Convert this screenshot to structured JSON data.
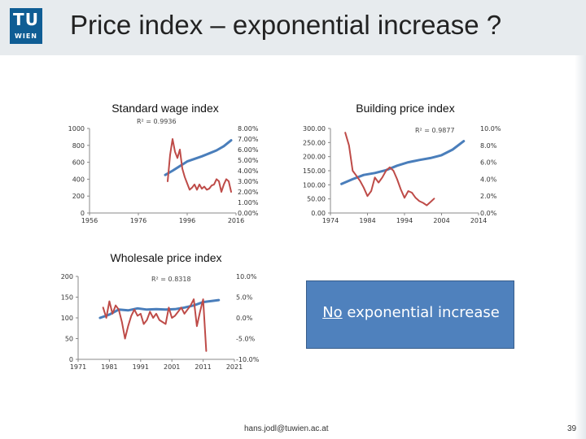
{
  "slide": {
    "title": "Price index – exponential increase ?",
    "logo_tu": "TU",
    "logo_wien": "WIEN",
    "callout_underlined": "No",
    "callout_rest": " exponential increase",
    "email": "hans.jodl@tuwien.ac.at",
    "page_number": "39",
    "colors": {
      "blue_series": "#4a7ebb",
      "red_series": "#be4b48",
      "callout_bg": "#4f81bd"
    }
  },
  "chart_data": [
    {
      "id": "wage",
      "type": "line",
      "title": "Standard wage index",
      "r2_label": "R² = 0.9936",
      "x_ticks": [
        "1956",
        "1976",
        "1996",
        "2016"
      ],
      "xlim": [
        1956,
        2016
      ],
      "left_axis": {
        "ticks": [
          "0",
          "200",
          "400",
          "600",
          "800",
          "1000"
        ],
        "ylim": [
          0,
          1000
        ]
      },
      "right_axis": {
        "ticks": [
          "0.00%",
          "1.00%",
          "2.00%",
          "3.00%",
          "4.00%",
          "5.00%",
          "6.00%",
          "7.00%",
          "8.00%"
        ],
        "ylim": [
          0,
          8
        ]
      },
      "series": [
        {
          "axis": "left",
          "color": "#4a7ebb",
          "x": [
            1987,
            1990,
            1993,
            1996,
            1999,
            2002,
            2005,
            2008,
            2011,
            2014
          ],
          "y": [
            450,
            500,
            555,
            610,
            640,
            670,
            705,
            740,
            790,
            860
          ]
        },
        {
          "axis": "right",
          "color": "#be4b48",
          "x": [
            1988,
            1989,
            1990,
            1991,
            1992,
            1993,
            1994,
            1995,
            1996,
            1997,
            1998,
            1999,
            2000,
            2001,
            2002,
            2003,
            2004,
            2005,
            2006,
            2007,
            2008,
            2009,
            2010,
            2011,
            2012,
            2013,
            2014
          ],
          "y": [
            3.0,
            5.5,
            7.0,
            5.8,
            5.2,
            6.0,
            4.2,
            3.4,
            2.8,
            2.2,
            2.4,
            2.7,
            2.2,
            2.7,
            2.3,
            2.5,
            2.2,
            2.3,
            2.6,
            2.7,
            3.2,
            3.0,
            2.0,
            2.7,
            3.2,
            3.0,
            2.0
          ]
        }
      ]
    },
    {
      "id": "building",
      "type": "line",
      "title": "Building price index",
      "r2_label": "R² = 0.9877",
      "x_ticks": [
        "1974",
        "1984",
        "1994",
        "2004",
        "2014"
      ],
      "xlim": [
        1974,
        2014
      ],
      "left_axis": {
        "ticks": [
          "0.00",
          "50.00",
          "100.00",
          "150.00",
          "200.00",
          "250.00",
          "300.00"
        ],
        "ylim": [
          0,
          300
        ]
      },
      "right_axis": {
        "ticks": [
          "0.0%",
          "2.0%",
          "4.0%",
          "6.0%",
          "8.0%",
          "10.0%"
        ],
        "ylim": [
          0,
          10
        ]
      },
      "series": [
        {
          "axis": "left",
          "color": "#4a7ebb",
          "x": [
            1977,
            1980,
            1983,
            1986,
            1989,
            1992,
            1995,
            1998,
            2001,
            2004,
            2007,
            2010
          ],
          "y": [
            103,
            120,
            135,
            142,
            152,
            168,
            180,
            188,
            195,
            205,
            225,
            255
          ]
        },
        {
          "axis": "right",
          "color": "#be4b48",
          "x": [
            1978,
            1979,
            1980,
            1981,
            1982,
            1983,
            1984,
            1985,
            1986,
            1987,
            1988,
            1989,
            1990,
            1991,
            1992,
            1993,
            1994,
            1995,
            1996,
            1997,
            1998,
            1999,
            2000,
            2001,
            2002
          ],
          "y": [
            9.5,
            8.0,
            5.0,
            4.4,
            3.8,
            3.0,
            2.0,
            2.6,
            4.2,
            3.6,
            4.2,
            5.0,
            5.4,
            5.0,
            4.0,
            2.8,
            1.8,
            2.6,
            2.4,
            1.8,
            1.4,
            1.2,
            0.9,
            1.3,
            1.7
          ]
        }
      ]
    },
    {
      "id": "wholesale",
      "type": "line",
      "title": "Wholesale price index",
      "r2_label": "R² = 0.8318",
      "x_ticks": [
        "1971",
        "1981",
        "1991",
        "2001",
        "2011",
        "2021"
      ],
      "xlim": [
        1971,
        2021
      ],
      "left_axis": {
        "ticks": [
          "0",
          "50",
          "100",
          "150",
          "200"
        ],
        "ylim": [
          0,
          200
        ]
      },
      "right_axis": {
        "ticks": [
          "-10.0%",
          "-5.0%",
          "0.0%",
          "5.0%",
          "10.0%"
        ],
        "ylim": [
          -10,
          10
        ]
      },
      "series": [
        {
          "axis": "left",
          "color": "#4a7ebb",
          "x": [
            1978,
            1981,
            1984,
            1987,
            1990,
            1993,
            1996,
            1999,
            2002,
            2005,
            2008,
            2011,
            2014,
            2016
          ],
          "y": [
            100,
            108,
            120,
            118,
            123,
            120,
            121,
            120,
            121,
            125,
            130,
            138,
            141,
            143
          ]
        },
        {
          "axis": "right",
          "color": "#be4b48",
          "x": [
            1979,
            1980,
            1981,
            1982,
            1983,
            1984,
            1985,
            1986,
            1987,
            1988,
            1989,
            1990,
            1991,
            1992,
            1993,
            1994,
            1995,
            1996,
            1997,
            1998,
            1999,
            2000,
            2001,
            2002,
            2003,
            2004,
            2005,
            2006,
            2007,
            2008,
            2009,
            2010,
            2011,
            2012
          ],
          "y": [
            2.5,
            0.0,
            4.0,
            1.0,
            3.0,
            2.0,
            -1.0,
            -5.0,
            -2.0,
            0.5,
            2.0,
            0.5,
            1.0,
            -1.5,
            -0.5,
            1.5,
            0.0,
            1.0,
            -0.5,
            -1.0,
            -1.5,
            2.5,
            0.0,
            0.5,
            1.5,
            2.5,
            1.0,
            2.0,
            3.0,
            4.5,
            -2.0,
            1.5,
            4.5,
            -8.0
          ]
        }
      ]
    }
  ]
}
